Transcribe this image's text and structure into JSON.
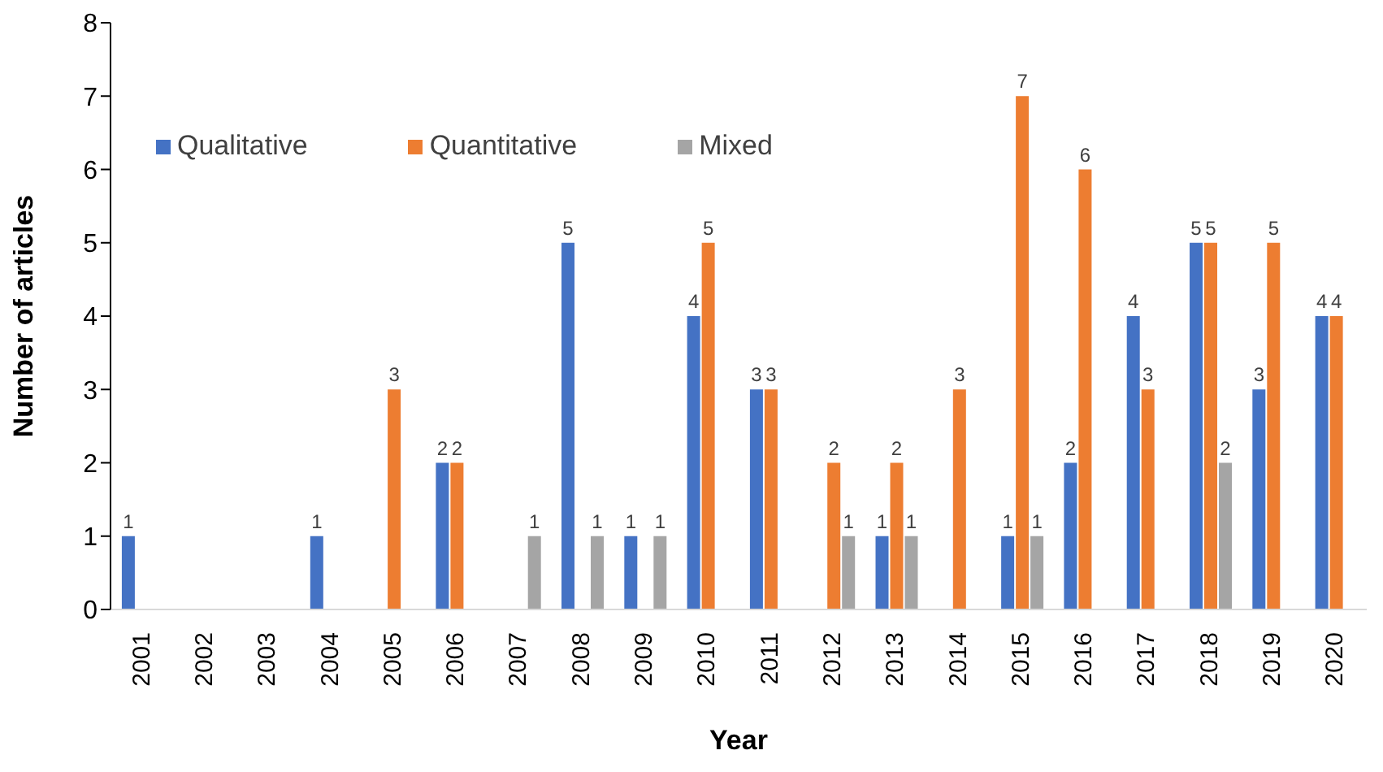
{
  "chart_data": {
    "type": "bar",
    "xlabel": "Year",
    "ylabel": "Number of articles",
    "categories": [
      "2001",
      "2002",
      "2003",
      "2004",
      "2005",
      "2006",
      "2007",
      "2008",
      "2009",
      "2010",
      "2011",
      "2012",
      "2013",
      "2014",
      "2015",
      "2016",
      "2017",
      "2018",
      "2019",
      "2020"
    ],
    "series": [
      {
        "name": "Qualitative",
        "color": "#4472c4",
        "values": [
          1,
          0,
          0,
          1,
          0,
          2,
          0,
          5,
          1,
          4,
          3,
          0,
          1,
          0,
          1,
          2,
          4,
          5,
          3,
          4
        ],
        "value_labels": [
          "1",
          null,
          null,
          "1",
          null,
          "2",
          null,
          "5",
          "1",
          "4",
          "3",
          null,
          "1",
          null,
          "1",
          "2",
          "4",
          "5",
          "3",
          "4"
        ]
      },
      {
        "name": "Quantitative",
        "color": "#ed7d31",
        "values": [
          0,
          0,
          0,
          0,
          3,
          2,
          0,
          0,
          0,
          5,
          3,
          2,
          2,
          3,
          7,
          6,
          3,
          5,
          5,
          4
        ],
        "value_labels": [
          null,
          null,
          null,
          null,
          "3",
          "2",
          null,
          null,
          null,
          "5",
          "3",
          "2",
          "2",
          "3",
          "7",
          "6",
          "3",
          "5",
          "5",
          "4"
        ]
      },
      {
        "name": "Mixed",
        "color": "#a5a5a5",
        "values": [
          0,
          0,
          0,
          0,
          0,
          0,
          1,
          1,
          1,
          0,
          0,
          1,
          1,
          0,
          1,
          0,
          0,
          2,
          0,
          0
        ],
        "value_labels": [
          null,
          null,
          null,
          null,
          null,
          null,
          "1",
          "1",
          "1",
          null,
          null,
          "1",
          "1",
          null,
          "1",
          null,
          null,
          "2",
          null,
          null
        ]
      }
    ],
    "ylim": [
      0,
      8
    ],
    "yticks": [
      0,
      1,
      2,
      3,
      4,
      5,
      6,
      7,
      8
    ],
    "grid": false,
    "legend": "top left"
  }
}
